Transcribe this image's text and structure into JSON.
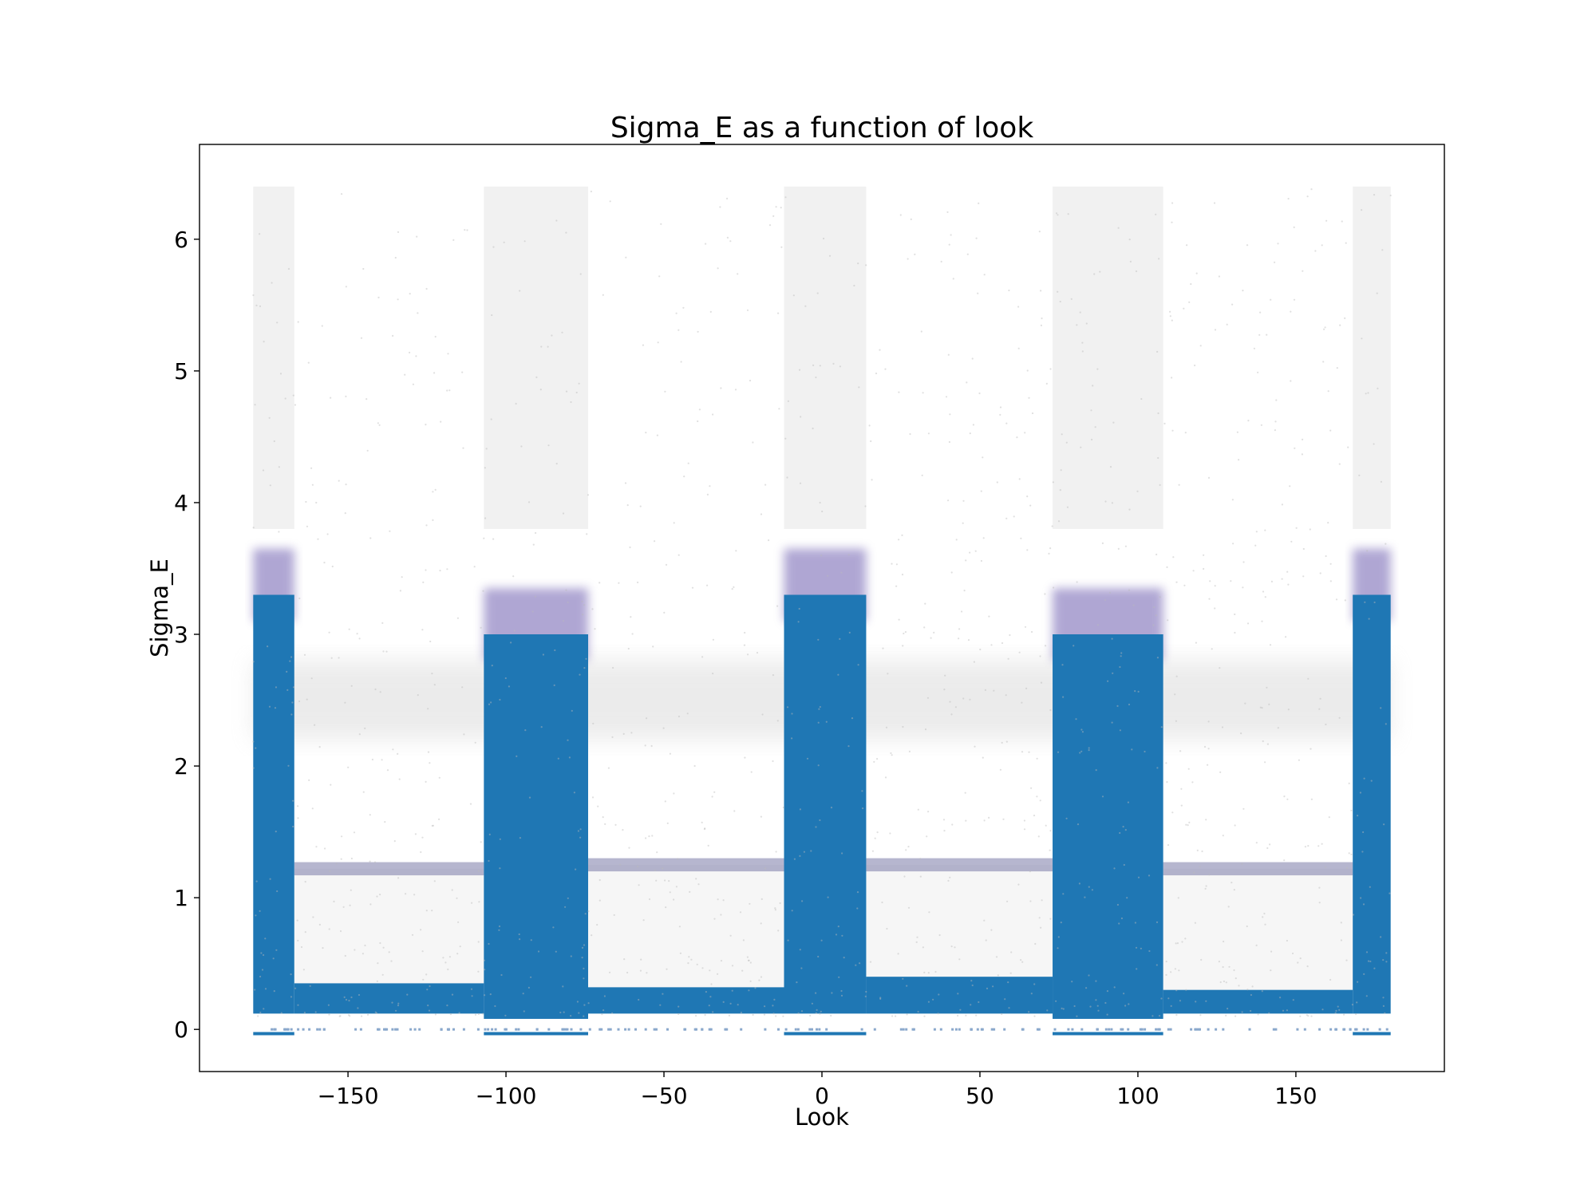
{
  "chart_data": {
    "type": "scatter",
    "title": "Sigma_E as a function of look",
    "xlabel": "Look",
    "ylabel": "Sigma_E",
    "xlim": [
      -197,
      197
    ],
    "ylim": [
      -0.32,
      6.72
    ],
    "xticks": [
      -150,
      -100,
      -50,
      0,
      50,
      100,
      150
    ],
    "xtick_labels": [
      "−150",
      "−100",
      "−50",
      "0",
      "50",
      "100",
      "150"
    ],
    "yticks": [
      0,
      1,
      2,
      3,
      4,
      5,
      6
    ],
    "ytick_labels": [
      "0",
      "1",
      "2",
      "3",
      "4",
      "5",
      "6"
    ],
    "grid": false,
    "legend": "none",
    "color": "#1f77b4",
    "background_points_color": "#bbbbbb",
    "dense_look_ranges": [
      {
        "x": [
          -180,
          -167
        ],
        "solid_y": [
          0.12,
          3.3
        ],
        "fuzzy_top": 3.8
      },
      {
        "x": [
          -107,
          -74
        ],
        "solid_y": [
          0.08,
          3.0
        ],
        "fuzzy_top": 3.8
      },
      {
        "x": [
          -12,
          14
        ],
        "solid_y": [
          0.12,
          3.3
        ],
        "fuzzy_top": 3.8
      },
      {
        "x": [
          73,
          108
        ],
        "solid_y": [
          0.08,
          3.0
        ],
        "fuzzy_top": 3.8
      },
      {
        "x": [
          168,
          180
        ],
        "solid_y": [
          0.12,
          3.3
        ],
        "fuzzy_top": 3.8
      }
    ],
    "sparse_look_ranges": [
      {
        "x": [
          -167,
          -107
        ],
        "blue_band_y": [
          0.12,
          0.35
        ],
        "ridge_y": 1.22
      },
      {
        "x": [
          -74,
          -12
        ],
        "blue_band_y": [
          0.12,
          0.32
        ],
        "ridge_y": 1.25
      },
      {
        "x": [
          14,
          73
        ],
        "blue_band_y": [
          0.12,
          0.4
        ],
        "ridge_y": 1.25
      },
      {
        "x": [
          108,
          168
        ],
        "blue_band_y": [
          0.12,
          0.3
        ],
        "ridge_y": 1.22
      }
    ],
    "gray_band_y": [
      2.2,
      2.8
    ],
    "max_sigma_e": 6.4,
    "zero_line_y": 0,
    "look_range": [
      -180,
      180
    ]
  }
}
